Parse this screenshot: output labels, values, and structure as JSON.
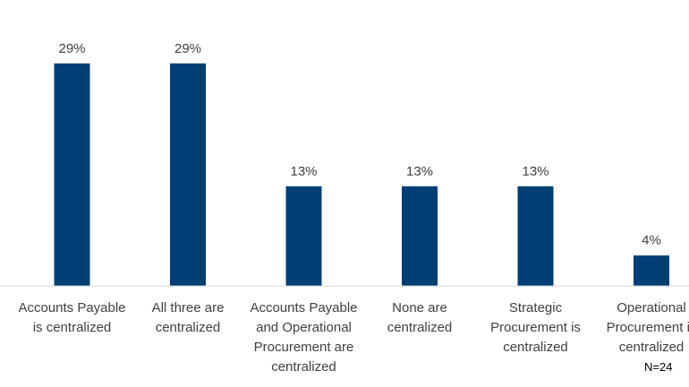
{
  "chart_data": {
    "type": "bar",
    "categories": [
      [
        "Accounts Payable",
        "is centralized"
      ],
      [
        "All three are",
        "centralized"
      ],
      [
        "Accounts Payable",
        "and Operational",
        "Procurement are",
        "centralized"
      ],
      [
        "None are",
        "centralized"
      ],
      [
        "Strategic",
        "Procurement is",
        "centralized"
      ],
      [
        "Operational",
        "Procurement is",
        "centralized"
      ]
    ],
    "values": [
      29,
      29,
      13,
      13,
      13,
      4
    ],
    "value_labels": [
      "29%",
      "29%",
      "13%",
      "13%",
      "13%",
      "4%"
    ],
    "unit": "%",
    "ylim": [
      0,
      29
    ],
    "grid": false,
    "legend": "none",
    "bar_color": "#003f73",
    "title": "",
    "xlabel": "",
    "ylabel": ""
  },
  "note": "N=24"
}
